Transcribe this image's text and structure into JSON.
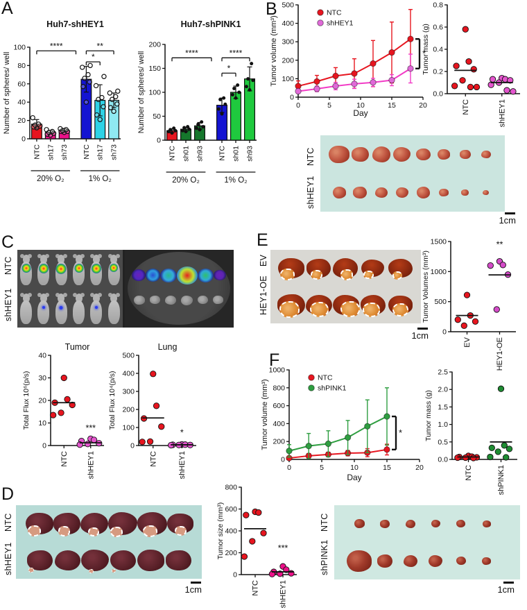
{
  "panels": {
    "a": "A",
    "b": "B",
    "c": "C",
    "d": "D",
    "e": "E",
    "f": "F"
  },
  "colors": {
    "red": "#e7151f",
    "deep_pink": "#ec1189",
    "blue": "#1414d2",
    "cyan": "#2ed3e6",
    "light_cyan": "#8fe9f2",
    "dark_green": "#15772c",
    "green": "#1fc93e",
    "orchid": "#e455ce",
    "magenta_line": "#f23cc6",
    "pink_ove": "#d44bc8",
    "f_green": "#2e9e40"
  },
  "chart_data": [
    {
      "id": "a1",
      "type": "bar",
      "title": "Huh7-shHEY1",
      "ylabel": "Number of spheres/ well",
      "ylim": [
        0,
        100
      ],
      "yticks": [
        "0",
        "20",
        "40",
        "60",
        "80",
        "100"
      ],
      "categories": [
        "NTC",
        "sh17",
        "sh73",
        "NTC",
        "sh17",
        "sh73"
      ],
      "values": [
        16,
        7,
        9,
        65,
        42,
        42
      ],
      "errors": [
        5,
        2,
        2,
        14,
        17,
        8
      ],
      "colors": [
        "#e7151f",
        "#ec1189",
        "#ec1189",
        "#1414d2",
        "#2ed3e6",
        "#8fe9f2"
      ],
      "points": [
        [
          12,
          13,
          14,
          15,
          16,
          23
        ],
        [
          4,
          5,
          6,
          7,
          8,
          10
        ],
        [
          7,
          8,
          8,
          9,
          10,
          11
        ],
        [
          40,
          57,
          62,
          66,
          70,
          78,
          80
        ],
        [
          21,
          26,
          35,
          43,
          45,
          58,
          68
        ],
        [
          30,
          34,
          38,
          43,
          46,
          50,
          52
        ]
      ],
      "point_style": "open",
      "groups": [
        {
          "label": "20% O₂",
          "from": 0,
          "to": 2
        },
        {
          "label": "1% O₂",
          "from": 3,
          "to": 5
        }
      ],
      "sig": [
        {
          "from": 0,
          "to": 2.85,
          "y": 96,
          "label": "****"
        },
        {
          "from": 3,
          "to": 4,
          "y": 84,
          "label": "*"
        },
        {
          "from": 3,
          "to": 5,
          "y": 96,
          "label": "**"
        }
      ]
    },
    {
      "id": "a2",
      "type": "bar",
      "title": "Huh7-shPINK1",
      "ylabel": "Number of spheres/ well",
      "ylim": [
        0,
        200
      ],
      "yticks": [
        "0",
        "50",
        "100",
        "150",
        "200"
      ],
      "categories": [
        "NTC",
        "sh01",
        "sh93",
        "NTC",
        "sh01",
        "sh93"
      ],
      "values": [
        20,
        23,
        30,
        73,
        100,
        128
      ],
      "errors": [
        4,
        4,
        7,
        15,
        13,
        25
      ],
      "colors": [
        "#e7151f",
        "#15772c",
        "#15772c",
        "#1414d2",
        "#1fc93e",
        "#1fc93e"
      ],
      "points": [
        [
          15,
          18,
          20,
          22,
          25
        ],
        [
          18,
          20,
          23,
          26,
          28
        ],
        [
          22,
          25,
          28,
          33,
          38
        ],
        [
          55,
          65,
          75,
          85,
          88
        ],
        [
          88,
          95,
          100,
          108,
          115
        ],
        [
          105,
          112,
          125,
          128,
          160
        ]
      ],
      "point_style": "filled",
      "groups": [
        {
          "label": "20% O₂",
          "from": 0,
          "to": 2
        },
        {
          "label": "1% O₂",
          "from": 3,
          "to": 5
        }
      ],
      "sig": [
        {
          "from": 0,
          "to": 2.85,
          "y": 172,
          "label": "****"
        },
        {
          "from": 3,
          "to": 4,
          "y": 140,
          "label": "*"
        },
        {
          "from": 3,
          "to": 5,
          "y": 172,
          "label": "****"
        }
      ]
    },
    {
      "id": "b_line",
      "type": "line",
      "ylabel": "Tumor volume (mm³)",
      "xlabel": "Day",
      "xlim": [
        0,
        20
      ],
      "xticks": [
        0,
        5,
        10,
        15,
        20
      ],
      "ylim": [
        0,
        500
      ],
      "yticks": [
        "0",
        "100",
        "200",
        "300",
        "400",
        "500"
      ],
      "series": [
        {
          "name": "NTC",
          "color": "#e7151f",
          "marker": "#e7151f",
          "x": [
            0,
            3,
            6,
            9,
            12,
            15,
            18
          ],
          "y": [
            60,
            85,
            115,
            128,
            182,
            242,
            315
          ],
          "err": [
            28,
            33,
            45,
            80,
            125,
            165,
            160
          ]
        },
        {
          "name": "shHEY1",
          "color": "#f23cc6",
          "marker": "#e06ad8",
          "x": [
            0,
            3,
            6,
            9,
            12,
            15,
            18
          ],
          "y": [
            32,
            45,
            60,
            72,
            80,
            92,
            155
          ],
          "err": [
            12,
            15,
            20,
            25,
            22,
            30,
            78
          ]
        }
      ],
      "sig": "*"
    },
    {
      "id": "b_mass",
      "type": "scatter",
      "ylabel": "Tumor mass (g)",
      "ylim": [
        0,
        0.8
      ],
      "yticks": [
        "0.0",
        "0.2",
        "0.4",
        "0.6",
        "0.8"
      ],
      "groups": [
        {
          "label": "NTC",
          "color": "#e7151f",
          "points": [
            0.58,
            0.29,
            0.25,
            0.22,
            0.12,
            0.07,
            0.06,
            0.06
          ],
          "median": 0.21
        },
        {
          "label": "shHEY1",
          "color": "#e455ce",
          "points": [
            0.14,
            0.13,
            0.13,
            0.12,
            0.1,
            0.08,
            0.03,
            0.02
          ],
          "median": 0.1
        }
      ]
    },
    {
      "id": "c_tumor",
      "type": "scatter",
      "title": "Tumor",
      "ylabel": "Total Flux 10⁶(p/s)",
      "ylim": [
        0,
        40
      ],
      "yticks": [
        "0",
        "10",
        "20",
        "30",
        "40"
      ],
      "groups": [
        {
          "label": "NTC",
          "color": "#e7151f",
          "points": [
            30,
            20.5,
            19,
            18,
            14.5,
            13.5
          ],
          "median": 19
        },
        {
          "label": "shHEY1",
          "color": "#e455ce",
          "points": [
            3,
            2.5,
            2,
            1,
            0.7,
            0.4
          ],
          "median": 1.2
        }
      ],
      "sig": {
        "group": 1,
        "y": 6.5,
        "label": "***"
      }
    },
    {
      "id": "c_lung",
      "type": "scatter",
      "title": "Lung",
      "ylabel": "Total Flux 10⁴(p/s)",
      "ylim": [
        0,
        500
      ],
      "yticks": [
        "0",
        "100",
        "200",
        "300",
        "400",
        "500"
      ],
      "groups": [
        {
          "label": "NTC",
          "color": "#e7151f",
          "points": [
            397,
            220,
            150,
            105,
            22,
            20
          ],
          "median": 153
        },
        {
          "label": "shHEY1",
          "color": "#e455ce",
          "points": [
            6,
            5,
            4,
            3,
            3,
            2
          ],
          "median": 4
        }
      ],
      "sig": {
        "group": 1,
        "y": 55,
        "label": "*"
      }
    },
    {
      "id": "d_size",
      "type": "scatter",
      "ylabel": "Tumor size (mm³)",
      "ylim": [
        0,
        800
      ],
      "yticks": [
        "0",
        "200",
        "400",
        "600",
        "800"
      ],
      "groups": [
        {
          "label": "NTC",
          "color": "#e7151f",
          "points": [
            575,
            568,
            545,
            380,
            305,
            165
          ],
          "median": 420
        },
        {
          "label": "shHEY1",
          "color": "#ec1189",
          "points": [
            75,
            45,
            25,
            12,
            8,
            5
          ],
          "median": 25
        }
      ],
      "sig": {
        "group": 1,
        "y": 215,
        "label": "***"
      }
    },
    {
      "id": "e_vol",
      "type": "scatter",
      "ylabel": "Tumor Volumes (mm³)",
      "ylim": [
        0,
        1500
      ],
      "yticks": [
        "0",
        "500",
        "1000",
        "1500"
      ],
      "groups": [
        {
          "label": "EV",
          "color": "#e7151f",
          "points": [
            610,
            270,
            200,
            170,
            100
          ],
          "median": 270
        },
        {
          "label": "HEY1-OE",
          "color": "#d44bc8",
          "points": [
            1170,
            1110,
            1100,
            950,
            370
          ],
          "median": 945
        }
      ],
      "sig": {
        "group": 1,
        "y": 1400,
        "label": "**"
      }
    },
    {
      "id": "f_line",
      "type": "line",
      "ylabel": "Tumor volume (mm³)",
      "xlabel": "Day",
      "xlim": [
        0,
        20
      ],
      "xticks": [
        0,
        5,
        10,
        15,
        20
      ],
      "ylim": [
        0,
        1000
      ],
      "yticks": [
        "0",
        "200",
        "400",
        "600",
        "800",
        "1000"
      ],
      "series": [
        {
          "name": "NTC",
          "color": "#e7151f",
          "marker": "#e7151f",
          "x": [
            0,
            3,
            6,
            9,
            12,
            15
          ],
          "y": [
            15,
            40,
            55,
            70,
            75,
            110
          ],
          "err": [
            15,
            25,
            25,
            30,
            45,
            60
          ]
        },
        {
          "name": "shPINK1",
          "color": "#2e9e40",
          "marker": "#2e9e40",
          "x": [
            0,
            3,
            6,
            9,
            12,
            15
          ],
          "y": [
            95,
            150,
            175,
            245,
            370,
            480
          ],
          "err": [
            70,
            140,
            145,
            190,
            295,
            320
          ]
        }
      ],
      "sig": "*"
    },
    {
      "id": "f_mass",
      "type": "scatter",
      "ylabel": "Tumor mass (g)",
      "ylim": [
        0,
        2.5
      ],
      "yticks": [
        "0.0",
        "0.5",
        "1.0",
        "1.5",
        "2.0",
        "2.5"
      ],
      "groups": [
        {
          "label": "NTC",
          "color": "#e7151f",
          "points": [
            0.1,
            0.08,
            0.07,
            0.06,
            0.05,
            0.05,
            0.04
          ],
          "median": 0.07
        },
        {
          "label": "shPINK1",
          "color": "#1e8c32",
          "points": [
            2.02,
            0.4,
            0.33,
            0.3,
            0.22,
            0.07,
            0.06
          ],
          "median": 0.5
        }
      ]
    }
  ],
  "photos": {
    "b": {
      "row_labels": [
        "NTC",
        "shHEY1"
      ],
      "scale_label": "1cm",
      "rows": [
        {
          "sizes": [
            30,
            25,
            26,
            25,
            21,
            18,
            16,
            14
          ]
        },
        {
          "sizes": [
            19,
            20,
            18,
            18,
            19,
            14,
            11,
            9
          ]
        }
      ]
    },
    "c": {
      "row_labels": [
        "NTC",
        "shHEY1"
      ],
      "mice": {
        "rows": [
          {
            "type": "tumor",
            "glows": [
              13,
              14,
              15,
              13,
              14,
              12
            ]
          },
          {
            "type": "dot",
            "glows": [
              0,
              4,
              5,
              0,
              4,
              0
            ]
          }
        ]
      },
      "dish": {
        "blobs": [
          {
            "size": 20,
            "colors": [
              "#6a20b8",
              "#5028c0",
              "#2a1a6e"
            ]
          },
          {
            "size": 22,
            "colors": [
              "#2a50d0",
              "#2f9fe0",
              "#1e2a80"
            ]
          },
          {
            "size": 24,
            "colors": [
              "#28b890",
              "#35aade",
              "#263090"
            ]
          },
          {
            "size": 30,
            "colors": [
              "#e62222",
              "#bfe22e",
              "#2a8ed6"
            ]
          },
          {
            "size": 24,
            "colors": [
              "#2fc26a",
              "#2fa8d8",
              "#263090"
            ]
          },
          {
            "size": 18,
            "colors": [
              "#6a20b8",
              "#5b25b0",
              "#2a1a6e"
            ]
          }
        ],
        "lungs": [
          16,
          15,
          16,
          17,
          15,
          15
        ]
      }
    },
    "d": {
      "row_labels": [
        "NTC",
        "shHEY1"
      ],
      "scale_label": "1cm",
      "rows": [
        {
          "sizes": [
            40,
            39,
            40,
            42,
            43,
            38
          ],
          "tumors": [
            15,
            13,
            12,
            14,
            17,
            13
          ]
        },
        {
          "sizes": [
            37,
            37,
            40,
            37,
            39,
            37
          ],
          "tumors": [
            6,
            0,
            5,
            4,
            0,
            0
          ]
        }
      ]
    },
    "e": {
      "row_labels": [
        "EV",
        "HEY1-OE"
      ],
      "scale_label": "1cm",
      "rows": [
        {
          "sizes": [
            38,
            35,
            36,
            33,
            35
          ],
          "tumors": [
            17,
            13,
            14,
            11,
            10
          ]
        },
        {
          "sizes": [
            40,
            38,
            38,
            36,
            35
          ],
          "tumors": [
            25,
            23,
            24,
            21,
            19
          ]
        }
      ]
    },
    "f": {
      "row_labels": [
        "NTC",
        "shPINK1"
      ],
      "scale_label": "1cm",
      "rows": [
        {
          "sizes": [
            15,
            14,
            14,
            13,
            13,
            12
          ]
        },
        {
          "sizes": [
            36,
            22,
            20,
            20,
            14,
            13
          ]
        }
      ]
    }
  }
}
